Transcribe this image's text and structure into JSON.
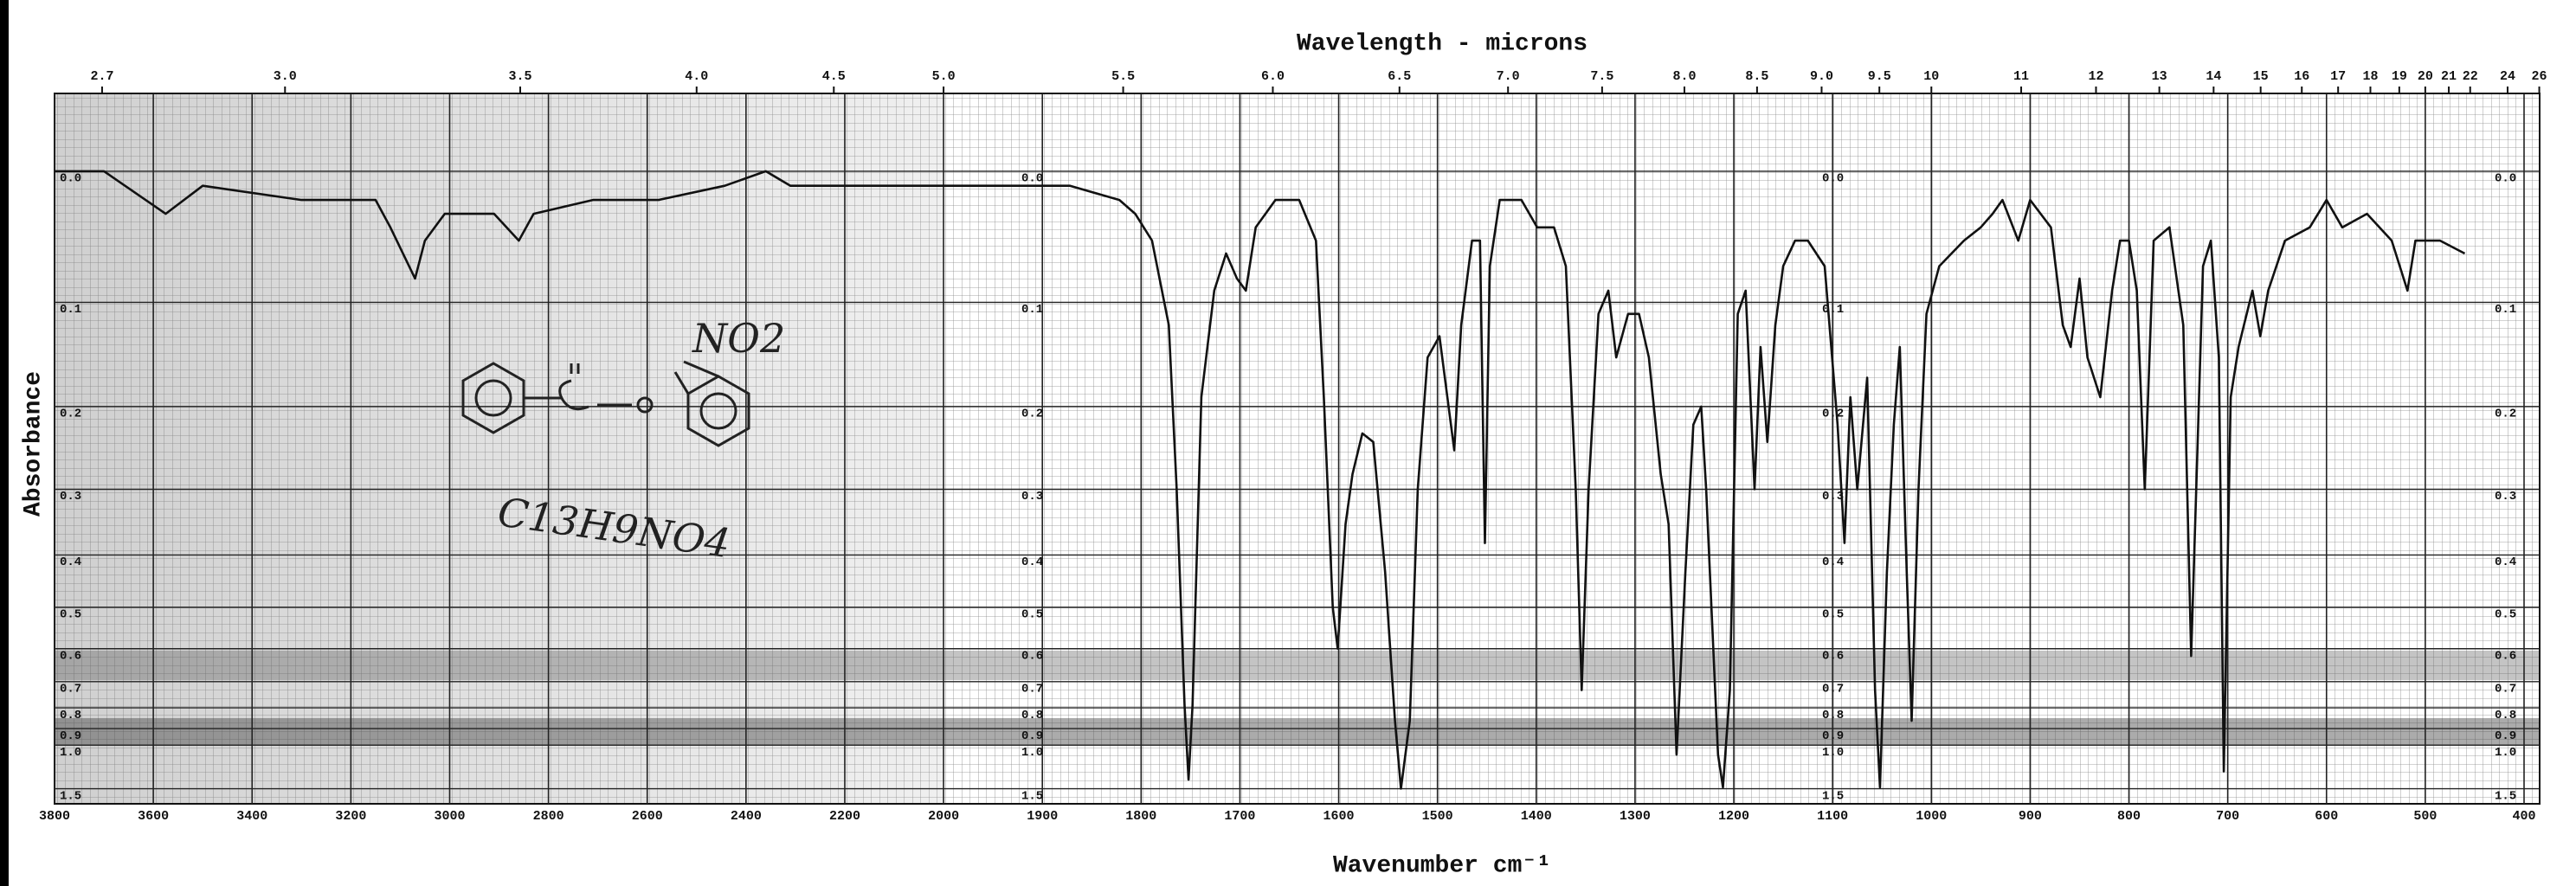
{
  "chart_data": {
    "type": "line",
    "title": "Wavelength - microns",
    "xlabel": "Wavenumber cm⁻¹",
    "ylabel": "Absorbance",
    "annotations": [
      "NO2",
      "C13H9NO4"
    ],
    "color": "#111111",
    "grid": true,
    "xlim": [
      3800,
      400
    ],
    "xbreak": 2000,
    "ylim": [
      -0.05,
      2.1
    ],
    "yticks": [
      {
        "value": 0,
        "label": "0.0"
      },
      0.1,
      0.2,
      0.3,
      0.4,
      0.5,
      0.6,
      0.7,
      0.8,
      0.9,
      {
        "value": 1,
        "label": "1.0"
      },
      1.5
    ],
    "xticks": [
      3800,
      3600,
      3400,
      3200,
      3000,
      2800,
      2600,
      2400,
      2200,
      2000,
      1900,
      1800,
      1700,
      1600,
      1500,
      1400,
      1300,
      1200,
      1100,
      1000,
      900,
      800,
      700,
      600,
      500,
      400
    ],
    "x2ticks": [
      2.7,
      {
        "value": 3,
        "label": "3.0"
      },
      3.5,
      {
        "value": 4,
        "label": "4.0"
      },
      4.5,
      {
        "value": 5,
        "label": "5.0"
      },
      5.5,
      {
        "value": 6,
        "label": "6.0"
      },
      6.5,
      {
        "value": 7,
        "label": "7.0"
      },
      7.5,
      {
        "value": 8,
        "label": "8.0"
      },
      8.5,
      {
        "value": 9,
        "label": "9.0"
      },
      9.5,
      10,
      11,
      12,
      13,
      14,
      15,
      16,
      17,
      18,
      19,
      20,
      21,
      22,
      24,
      26
    ],
    "x": [
      3800,
      3700,
      3575,
      3500,
      3300,
      3150,
      3120,
      3070,
      3050,
      3010,
      2910,
      2860,
      2830,
      2710,
      2577,
      2443,
      2360,
      2310,
      2243,
      2110,
      2000,
      1955,
      1922,
      1872,
      1822,
      1806,
      1789,
      1772,
      1764,
      1756,
      1752,
      1748,
      1739,
      1726,
      1714,
      1703,
      1694,
      1684,
      1664,
      1640,
      1623,
      1615,
      1606,
      1601,
      1593,
      1586,
      1576,
      1565,
      1553,
      1543,
      1537,
      1528,
      1520,
      1510,
      1498,
      1490,
      1483,
      1476,
      1465,
      1457,
      1452,
      1447,
      1437,
      1415,
      1399,
      1382,
      1370,
      1360,
      1354,
      1347,
      1337,
      1327,
      1319,
      1307,
      1296,
      1286,
      1274,
      1266,
      1258,
      1249,
      1241,
      1233,
      1228,
      1216,
      1211,
      1204,
      1196,
      1188,
      1179,
      1173,
      1166,
      1158,
      1150,
      1138,
      1125,
      1108,
      1095,
      1088,
      1082,
      1075,
      1065,
      1057,
      1052,
      1045,
      1038,
      1032,
      1025,
      1020,
      1013,
      1005,
      992,
      967,
      950,
      938,
      928,
      912,
      900,
      879,
      867,
      859,
      850,
      842,
      829,
      817,
      809,
      800,
      792,
      784,
      775,
      759,
      745,
      737,
      725,
      717,
      709,
      704,
      697,
      689,
      675,
      667,
      659,
      642,
      617,
      600,
      584,
      559,
      534,
      518,
      510,
      485,
      460
    ],
    "values": [
      0,
      0,
      0.03,
      0.01,
      0.02,
      0.02,
      0.04,
      0.08,
      0.05,
      0.03,
      0.03,
      0.05,
      0.03,
      0.02,
      0.02,
      0.01,
      0,
      0.01,
      0.01,
      0.01,
      0.01,
      0.01,
      0.01,
      0.01,
      0.02,
      0.03,
      0.05,
      0.12,
      0.3,
      0.79,
      1.34,
      0.79,
      0.19,
      0.09,
      0.06,
      0.08,
      0.09,
      0.04,
      0.02,
      0.02,
      0.05,
      0.19,
      0.5,
      0.6,
      0.35,
      0.28,
      0.23,
      0.24,
      0.43,
      0.86,
      1.5,
      0.86,
      0.3,
      0.15,
      0.13,
      0.19,
      0.25,
      0.12,
      0.05,
      0.05,
      0.38,
      0.07,
      0.02,
      0.02,
      0.04,
      0.04,
      0.07,
      0.3,
      0.73,
      0.3,
      0.11,
      0.09,
      0.15,
      0.11,
      0.11,
      0.15,
      0.28,
      0.35,
      1.07,
      0.43,
      0.22,
      0.2,
      0.3,
      1.07,
      1.47,
      0.73,
      0.11,
      0.09,
      0.3,
      0.14,
      0.24,
      0.12,
      0.07,
      0.05,
      0.05,
      0.07,
      0.22,
      0.38,
      0.19,
      0.3,
      0.17,
      0.73,
      1.47,
      0.43,
      0.22,
      0.14,
      0.43,
      0.86,
      0.3,
      0.11,
      0.07,
      0.05,
      0.04,
      0.03,
      0.02,
      0.05,
      0.02,
      0.04,
      0.12,
      0.14,
      0.08,
      0.15,
      0.19,
      0.09,
      0.05,
      0.05,
      0.09,
      0.3,
      0.05,
      0.04,
      0.12,
      0.62,
      0.07,
      0.05,
      0.15,
      1.23,
      0.19,
      0.14,
      0.09,
      0.13,
      0.09,
      0.05,
      0.04,
      0.02,
      0.04,
      0.03,
      0.05,
      0.09,
      0.05,
      0.05,
      0.06
    ]
  }
}
